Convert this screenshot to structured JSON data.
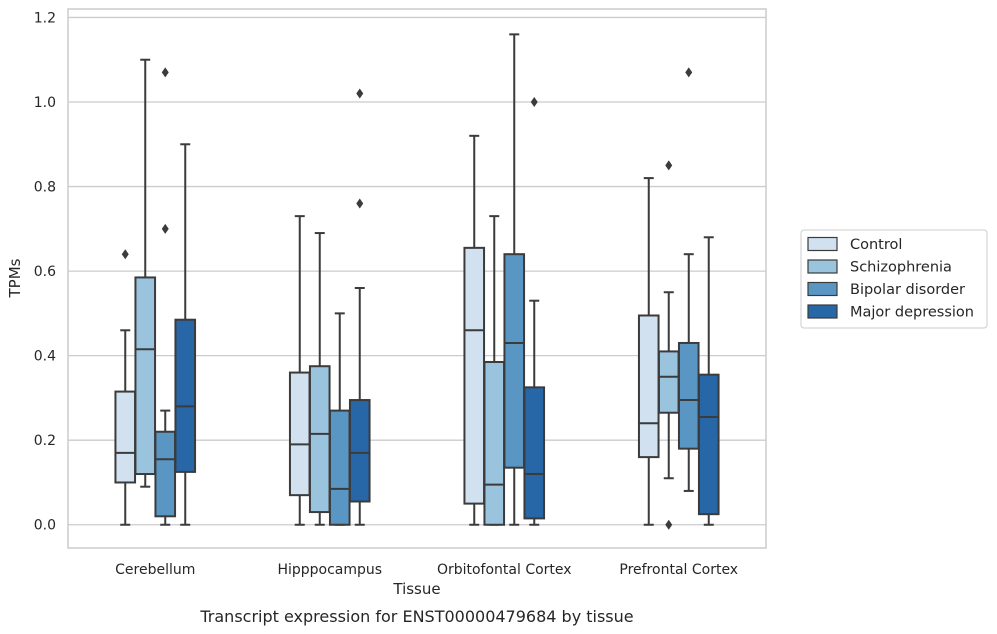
{
  "chart_data": {
    "type": "box",
    "xlabel": "Tissue",
    "ylabel": "TPMs",
    "caption": "Transcript expression for ENST00000479684 by tissue",
    "ylim": [
      -0.055,
      1.22
    ],
    "yticks": [
      "0.0",
      "0.2",
      "0.4",
      "0.6",
      "0.8",
      "1.0",
      "1.2"
    ],
    "grid": "horizontal",
    "legend_position": "right",
    "categories": [
      "Cerebellum",
      "Hipppocampus",
      "Orbitofontal Cortex",
      "Prefrontal Cortex"
    ],
    "series": [
      {
        "name": "Control",
        "color": "#d1e1f0",
        "boxes": [
          {
            "min": 0.0,
            "q1": 0.1,
            "median": 0.17,
            "q3": 0.315,
            "max": 0.46,
            "outliers": [
              0.64
            ]
          },
          {
            "min": 0.0,
            "q1": 0.07,
            "median": 0.19,
            "q3": 0.36,
            "max": 0.73,
            "outliers": []
          },
          {
            "min": 0.0,
            "q1": 0.05,
            "median": 0.46,
            "q3": 0.655,
            "max": 0.92,
            "outliers": []
          },
          {
            "min": 0.0,
            "q1": 0.16,
            "median": 0.24,
            "q3": 0.495,
            "max": 0.82,
            "outliers": []
          }
        ]
      },
      {
        "name": "Schizophrenia",
        "color": "#9ac4de",
        "boxes": [
          {
            "min": 0.09,
            "q1": 0.12,
            "median": 0.415,
            "q3": 0.585,
            "max": 1.1,
            "outliers": []
          },
          {
            "min": 0.0,
            "q1": 0.03,
            "median": 0.215,
            "q3": 0.375,
            "max": 0.69,
            "outliers": []
          },
          {
            "min": 0.0,
            "q1": 0.0,
            "median": 0.095,
            "q3": 0.385,
            "max": 0.73,
            "outliers": []
          },
          {
            "min": 0.11,
            "q1": 0.265,
            "median": 0.35,
            "q3": 0.41,
            "max": 0.55,
            "outliers": [
              0.0,
              0.85
            ]
          }
        ]
      },
      {
        "name": "Bipolar disorder",
        "color": "#5a96c4",
        "boxes": [
          {
            "min": 0.0,
            "q1": 0.02,
            "median": 0.155,
            "q3": 0.22,
            "max": 0.27,
            "outliers": [
              0.7,
              1.07
            ]
          },
          {
            "min": 0.0,
            "q1": 0.0,
            "median": 0.085,
            "q3": 0.27,
            "max": 0.5,
            "outliers": []
          },
          {
            "min": 0.0,
            "q1": 0.135,
            "median": 0.43,
            "q3": 0.64,
            "max": 1.16,
            "outliers": []
          },
          {
            "min": 0.08,
            "q1": 0.18,
            "median": 0.295,
            "q3": 0.43,
            "max": 0.64,
            "outliers": [
              1.07
            ]
          }
        ]
      },
      {
        "name": "Major depression",
        "color": "#2767a8",
        "boxes": [
          {
            "min": 0.0,
            "q1": 0.125,
            "median": 0.28,
            "q3": 0.485,
            "max": 0.9,
            "outliers": []
          },
          {
            "min": 0.0,
            "q1": 0.055,
            "median": 0.17,
            "q3": 0.295,
            "max": 0.56,
            "outliers": [
              0.76,
              1.02
            ]
          },
          {
            "min": 0.0,
            "q1": 0.015,
            "median": 0.12,
            "q3": 0.325,
            "max": 0.53,
            "outliers": [
              1.0
            ]
          },
          {
            "min": 0.0,
            "q1": 0.025,
            "median": 0.255,
            "q3": 0.355,
            "max": 0.68,
            "outliers": []
          }
        ]
      }
    ]
  }
}
